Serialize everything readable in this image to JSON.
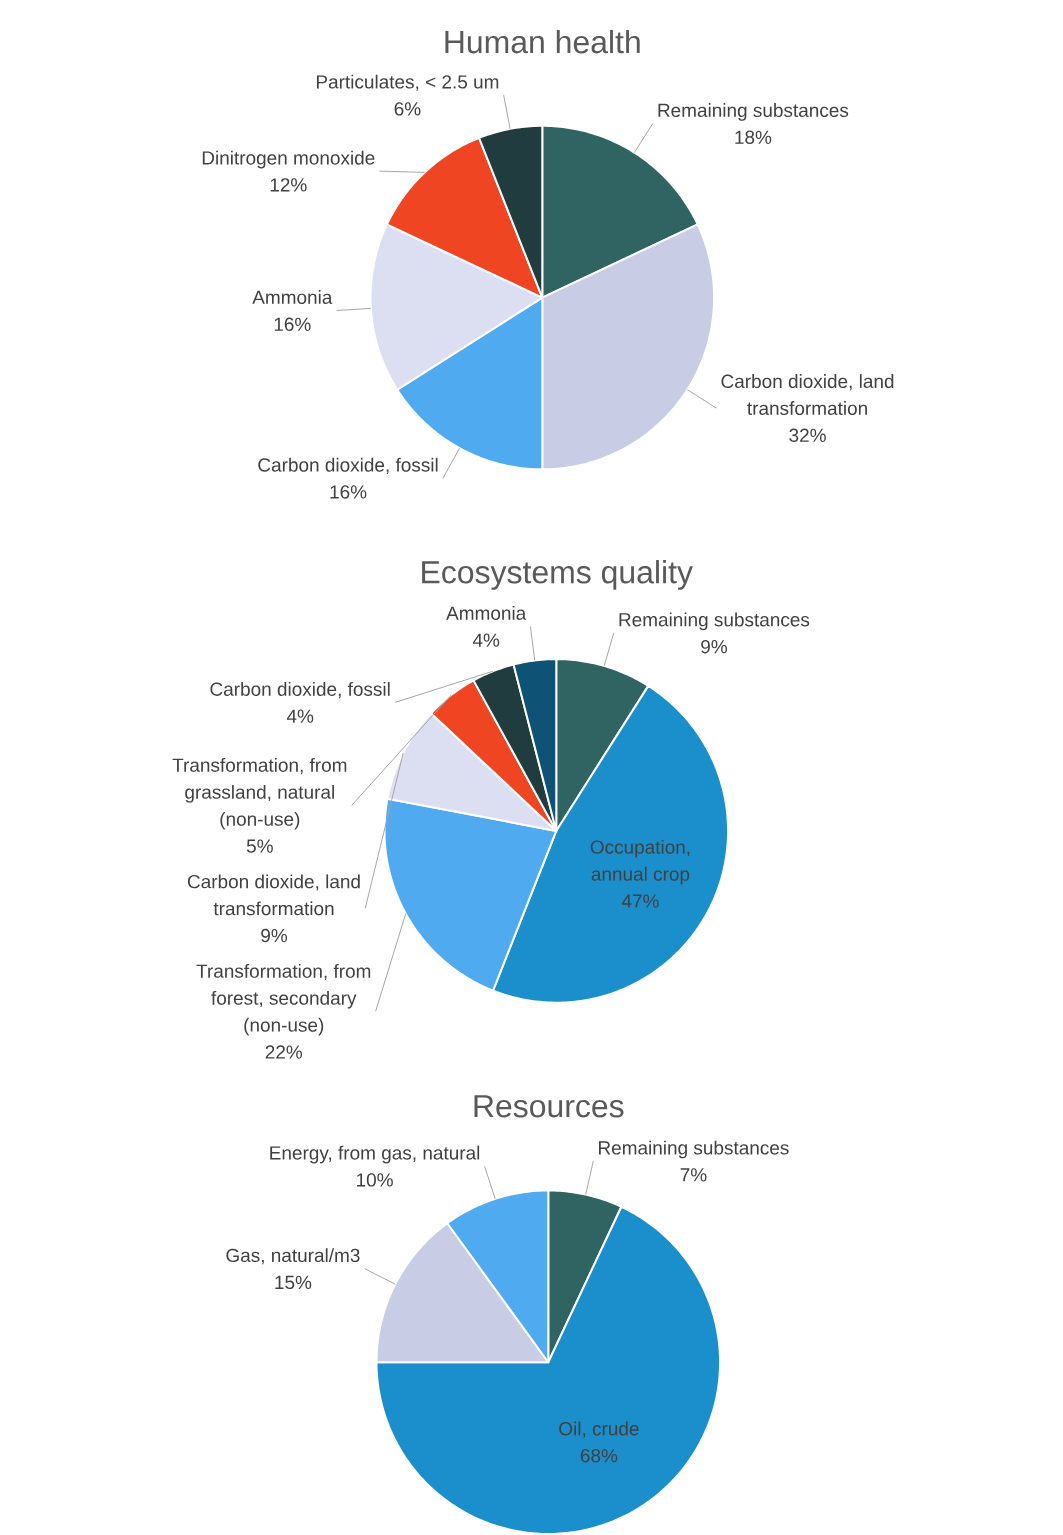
{
  "chart_data": [
    {
      "type": "pie",
      "title": "Human health",
      "categories": [
        "Remaining substances",
        "Carbon dioxide, land transformation",
        "Carbon dioxide, fossil",
        "Ammonia",
        "Dinitrogen monoxide",
        "Particulates, < 2.5 um"
      ],
      "values": [
        18,
        32,
        16,
        16,
        12,
        6
      ],
      "value_labels": [
        "18%",
        "32%",
        "16%",
        "16%",
        "12%",
        "6%"
      ],
      "colors": [
        "#306463",
        "#c8cce4",
        "#4faaf0",
        "#dcdff2",
        "#ef4523",
        "#213c3e"
      ]
    },
    {
      "type": "pie",
      "title": "Ecosystems quality",
      "categories": [
        "Remaining substances",
        "Occupation, annual crop",
        "Transformation, from forest, secondary (non-use)",
        "Carbon dioxide, land transformation",
        "Transformation, from grassland, natural (non-use)",
        "Carbon dioxide, fossil",
        "Ammonia"
      ],
      "values": [
        9,
        47,
        22,
        9,
        5,
        4,
        4
      ],
      "value_labels": [
        "9%",
        "47%",
        "22%",
        "9%",
        "5%",
        "4%",
        "4%"
      ],
      "colors": [
        "#306463",
        "#1a8fcc",
        "#4faaf0",
        "#dcdff2",
        "#ef4523",
        "#213c3e",
        "#0e5275"
      ]
    },
    {
      "type": "pie",
      "title": "Resources",
      "categories": [
        "Remaining substances",
        "Oil, crude",
        "Gas, natural/m3",
        "Energy, from gas, natural"
      ],
      "values": [
        7,
        68,
        15,
        10
      ],
      "value_labels": [
        "7%",
        "68%",
        "15%",
        "10%"
      ],
      "colors": [
        "#306463",
        "#1a8fcc",
        "#c8cce4",
        "#4faaf0"
      ]
    }
  ]
}
